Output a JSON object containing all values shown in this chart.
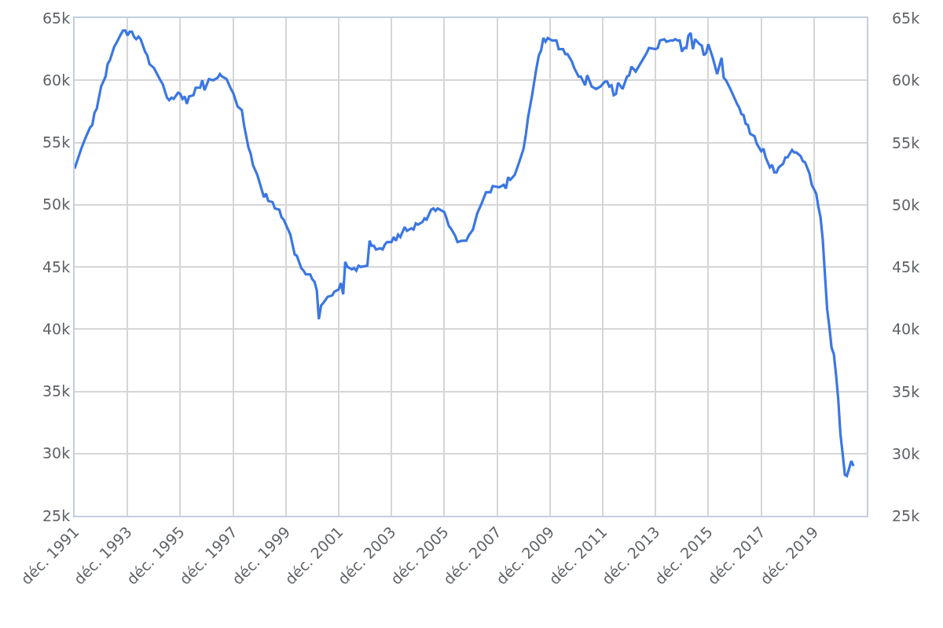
{
  "chart_data": {
    "type": "line",
    "x": [
      "1991-12",
      "1992-03",
      "1992-05",
      "1992-07",
      "1992-08",
      "1992-09",
      "1992-10",
      "1992-12",
      "1993-02",
      "1993-03",
      "1993-04",
      "1993-06",
      "1993-07",
      "1993-09",
      "1993-10",
      "1993-11",
      "1993-12",
      "1994-01",
      "1994-02",
      "1994-03",
      "1994-04",
      "1994-05",
      "1994-06",
      "1994-08",
      "1994-09",
      "1994-10",
      "1994-12",
      "1995-03",
      "1995-04",
      "1995-06",
      "1995-07",
      "1995-08",
      "1995-09",
      "1995-11",
      "1995-12",
      "1996-01",
      "1996-02",
      "1996-03",
      "1996-04",
      "1996-06",
      "1996-07",
      "1996-09",
      "1996-10",
      "1996-11",
      "1997-01",
      "1997-03",
      "1997-05",
      "1997-06",
      "1997-07",
      "1997-09",
      "1997-11",
      "1997-12",
      "1998-02",
      "1998-04",
      "1998-05",
      "1998-07",
      "1998-08",
      "1998-09",
      "1998-10",
      "1998-11",
      "1999-01",
      "1999-02",
      "1999-03",
      "1999-04",
      "1999-06",
      "1999-07",
      "1999-09",
      "1999-10",
      "1999-11",
      "2000-02",
      "2000-04",
      "2000-05",
      "2000-07",
      "2000-08",
      "2000-09",
      "2000-11",
      "2000-12",
      "2001-01",
      "2001-02",
      "2001-03",
      "2001-04",
      "2001-05",
      "2001-07",
      "2001-09",
      "2001-10",
      "2001-12",
      "2002-01",
      "2002-02",
      "2002-03",
      "2002-04",
      "2002-05",
      "2002-06",
      "2002-07",
      "2002-08",
      "2002-09",
      "2002-10",
      "2003-01",
      "2003-02",
      "2003-03",
      "2003-04",
      "2003-05",
      "2003-07",
      "2003-08",
      "2003-09",
      "2003-10",
      "2003-12",
      "2004-01",
      "2004-02",
      "2004-03",
      "2004-04",
      "2004-05",
      "2004-06",
      "2004-07",
      "2004-09",
      "2004-10",
      "2004-11",
      "2004-12",
      "2005-02",
      "2005-03",
      "2005-04",
      "2005-06",
      "2005-07",
      "2005-08",
      "2005-09",
      "2005-11",
      "2005-12",
      "2006-01",
      "2006-02",
      "2006-03",
      "2006-05",
      "2006-06",
      "2006-08",
      "2006-10",
      "2006-11",
      "2007-01",
      "2007-03",
      "2007-05",
      "2007-07",
      "2007-09",
      "2007-10",
      "2008-01",
      "2008-03",
      "2008-04",
      "2008-05",
      "2008-06",
      "2008-08",
      "2008-10",
      "2008-12",
      "2009-01",
      "2009-02",
      "2009-04",
      "2009-05",
      "2009-06",
      "2009-07",
      "2009-08",
      "2009-09",
      "2009-10",
      "2009-11",
      "2010-01",
      "2010-03",
      "2010-04",
      "2010-06",
      "2010-07",
      "2010-08",
      "2010-10",
      "2010-11",
      "2011-01",
      "2011-02",
      "2011-04",
      "2011-05",
      "2011-07",
      "2011-09",
      "2011-11",
      "2012-01",
      "2012-02",
      "2012-03",
      "2012-04",
      "2012-05",
      "2012-06",
      "2012-07",
      "2012-09",
      "2012-11",
      "2012-12",
      "2013-01",
      "2013-03",
      "2013-05",
      "2013-06",
      "2013-08",
      "2013-09",
      "2013-12",
      "2014-01",
      "2014-02",
      "2014-04",
      "2014-05",
      "2014-07",
      "2014-08",
      "2014-09",
      "2014-10",
      "2014-11",
      "2014-12",
      "2015-01",
      "2015-02",
      "2015-03",
      "2015-04",
      "2015-05",
      "2015-06",
      "2015-08",
      "2015-09",
      "2015-10",
      "2015-11",
      "2015-12",
      "2016-02",
      "2016-04",
      "2016-06",
      "2016-07",
      "2016-08",
      "2016-10",
      "2016-11",
      "2017-01",
      "2017-02",
      "2017-03",
      "2017-04",
      "2017-05",
      "2017-06",
      "2017-07",
      "2017-09",
      "2017-10",
      "2017-12",
      "2018-01",
      "2018-02",
      "2018-04",
      "2018-05",
      "2018-06",
      "2018-07",
      "2018-08",
      "2018-10",
      "2018-11",
      "2018-12",
      "2019-02",
      "2019-03",
      "2019-04",
      "2019-06",
      "2019-07",
      "2019-08",
      "2019-10",
      "2019-11",
      "2020-01",
      "2020-02",
      "2020-03",
      "2020-04",
      "2020-05",
      "2020-06",
      "2020-07",
      "2020-08",
      "2020-09",
      "2020-10",
      "2020-11",
      "2020-12",
      "2021-01",
      "2021-02",
      "2021-03",
      "2021-04",
      "2021-05",
      "2021-06"
    ],
    "series": [
      {
        "color": "#3b77e3",
        "values": [
          52900,
          54500,
          55400,
          56200,
          56400,
          57400,
          57700,
          59500,
          60300,
          61300,
          61600,
          62700,
          63000,
          63700,
          64000,
          64000,
          63600,
          63900,
          63900,
          63500,
          63300,
          63500,
          63300,
          62300,
          62000,
          61300,
          61000,
          60000,
          59700,
          58600,
          58400,
          58600,
          58500,
          59000,
          58900,
          58500,
          58700,
          58100,
          58700,
          58800,
          59400,
          59400,
          60000,
          59200,
          60100,
          60000,
          60200,
          60500,
          60300,
          60100,
          59300,
          59000,
          57900,
          57600,
          56400,
          54600,
          54100,
          53200,
          52800,
          52400,
          51200,
          50600,
          50900,
          50300,
          50200,
          49700,
          49600,
          49000,
          48800,
          47600,
          46000,
          45900,
          44900,
          44700,
          44400,
          44400,
          44000,
          43800,
          43100,
          40800,
          41900,
          42100,
          42600,
          42700,
          43000,
          43200,
          43700,
          42800,
          45400,
          45000,
          44900,
          44800,
          44900,
          44700,
          45100,
          45000,
          45100,
          47100,
          46700,
          46700,
          46400,
          46500,
          46400,
          46800,
          47000,
          47000,
          47400,
          47100,
          47600,
          47400,
          47800,
          48200,
          47900,
          48100,
          48000,
          48500,
          48400,
          48600,
          48900,
          48800,
          49600,
          49700,
          49500,
          49700,
          49500,
          49400,
          48900,
          48300,
          48100,
          47500,
          47000,
          47100,
          47100,
          47500,
          48000,
          49300,
          50100,
          51000,
          51000,
          51500,
          51400,
          51600,
          51300,
          52200,
          52000,
          52400,
          53400,
          54500,
          55600,
          57000,
          58900,
          60000,
          61100,
          62000,
          62400,
          63400,
          63100,
          63400,
          63200,
          63200,
          62500,
          62500,
          62100,
          62100,
          61500,
          61000,
          60300,
          60300,
          59600,
          60400,
          59500,
          59300,
          59500,
          59900,
          59900,
          59500,
          59600,
          58800,
          58900,
          59800,
          59300,
          60300,
          60400,
          61100,
          60700,
          61300,
          61600,
          62200,
          62600,
          62500,
          62600,
          63200,
          63300,
          63100,
          63200,
          63200,
          63300,
          63200,
          63200,
          62300,
          62600,
          62600,
          63600,
          63800,
          62500,
          63300,
          62900,
          62800,
          62000,
          62200,
          62900,
          61800,
          60500,
          61800,
          60200,
          60000,
          59300,
          58900,
          58100,
          57800,
          57300,
          57200,
          56500,
          56400,
          55700,
          55500,
          54900,
          54300,
          54500,
          53800,
          53000,
          53200,
          52600,
          52600,
          53000,
          53300,
          53800,
          53800,
          54400,
          54200,
          54200,
          53900,
          53500,
          53400,
          52500,
          51600,
          50900,
          49800,
          49000,
          47200,
          44400,
          41600,
          40200,
          38500,
          38000,
          36400,
          34400,
          31600,
          30000,
          28300,
          28200,
          28800,
          29400,
          29000
        ]
      }
    ],
    "xlim": [
      "1991-12",
      "2021-12"
    ],
    "xticks": [
      {
        "value": "1991-12",
        "label": "déc. 1991"
      },
      {
        "value": "1993-12",
        "label": "déc. 1993"
      },
      {
        "value": "1995-12",
        "label": "déc. 1995"
      },
      {
        "value": "1997-12",
        "label": "déc. 1997"
      },
      {
        "value": "1999-12",
        "label": "déc. 1999"
      },
      {
        "value": "2001-12",
        "label": "déc. 2001"
      },
      {
        "value": "2003-12",
        "label": "déc. 2003"
      },
      {
        "value": "2005-12",
        "label": "déc. 2005"
      },
      {
        "value": "2007-12",
        "label": "déc. 2007"
      },
      {
        "value": "2009-12",
        "label": "déc. 2009"
      },
      {
        "value": "2011-12",
        "label": "déc. 2011"
      },
      {
        "value": "2013-12",
        "label": "déc. 2013"
      },
      {
        "value": "2015-12",
        "label": "déc. 2015"
      },
      {
        "value": "2017-12",
        "label": "déc. 2017"
      },
      {
        "value": "2019-12",
        "label": "déc. 2019"
      }
    ],
    "ylim": [
      25000,
      65000
    ],
    "yticks": [
      {
        "value": 25000,
        "label": "25k"
      },
      {
        "value": 30000,
        "label": "30k"
      },
      {
        "value": 35000,
        "label": "35k"
      },
      {
        "value": 40000,
        "label": "40k"
      },
      {
        "value": 45000,
        "label": "45k"
      },
      {
        "value": 50000,
        "label": "50k"
      },
      {
        "value": 55000,
        "label": "55k"
      },
      {
        "value": 60000,
        "label": "60k"
      },
      {
        "value": 65000,
        "label": "65k"
      }
    ],
    "y2lim": [
      25000,
      65000
    ],
    "y2ticks": [
      {
        "value": 25000,
        "label": "25k"
      },
      {
        "value": 30000,
        "label": "30k"
      },
      {
        "value": 35000,
        "label": "35k"
      },
      {
        "value": 40000,
        "label": "40k"
      },
      {
        "value": 45000,
        "label": "45k"
      },
      {
        "value": 50000,
        "label": "50k"
      },
      {
        "value": 55000,
        "label": "55k"
      },
      {
        "value": 60000,
        "label": "60k"
      },
      {
        "value": 65000,
        "label": "65k"
      }
    ],
    "grid": true,
    "marker": "none",
    "line_style": "solid"
  }
}
